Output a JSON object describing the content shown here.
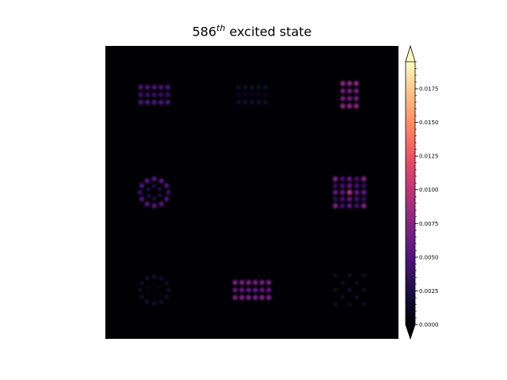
{
  "chart_data": {
    "type": "heatmap",
    "title": {
      "number": "586",
      "superscript": "th",
      "text": "excited state"
    },
    "xlabel": "",
    "ylabel": "",
    "colormap": "magma",
    "colorbar": {
      "range": [
        0,
        0.0195
      ],
      "extend": "both",
      "ticks": [
        "0.0000",
        "0.0025",
        "0.0050",
        "0.0075",
        "0.0100",
        "0.0125",
        "0.0150",
        "0.0175"
      ],
      "tick_values": [
        0,
        0.0025,
        0.005,
        0.0075,
        0.01,
        0.0125,
        0.015,
        0.0175
      ]
    },
    "grid_layout": "3x3",
    "cells": [
      {
        "row": 0,
        "col": 0,
        "pattern": "rect",
        "rows": 3,
        "cols": 5,
        "peak": 0.0045
      },
      {
        "row": 0,
        "col": 1,
        "pattern": "rect",
        "rows": 3,
        "cols": 5,
        "peak": 0.0012
      },
      {
        "row": 0,
        "col": 2,
        "pattern": "rect",
        "rows": 4,
        "cols": 3,
        "peak": 0.0078
      },
      {
        "row": 1,
        "col": 0,
        "pattern": "ring",
        "rows": 0,
        "cols": 0,
        "peak": 0.0055
      },
      {
        "row": 1,
        "col": 1,
        "pattern": "none",
        "rows": 0,
        "cols": 0,
        "peak": 0.0
      },
      {
        "row": 1,
        "col": 2,
        "pattern": "cross",
        "rows": 0,
        "cols": 0,
        "peak": 0.0095
      },
      {
        "row": 2,
        "col": 0,
        "pattern": "ring",
        "rows": 0,
        "cols": 0,
        "peak": 0.0015
      },
      {
        "row": 2,
        "col": 1,
        "pattern": "rect",
        "rows": 3,
        "cols": 6,
        "peak": 0.0068
      },
      {
        "row": 2,
        "col": 2,
        "pattern": "sparse",
        "rows": 0,
        "cols": 0,
        "peak": 0.0018
      }
    ]
  }
}
